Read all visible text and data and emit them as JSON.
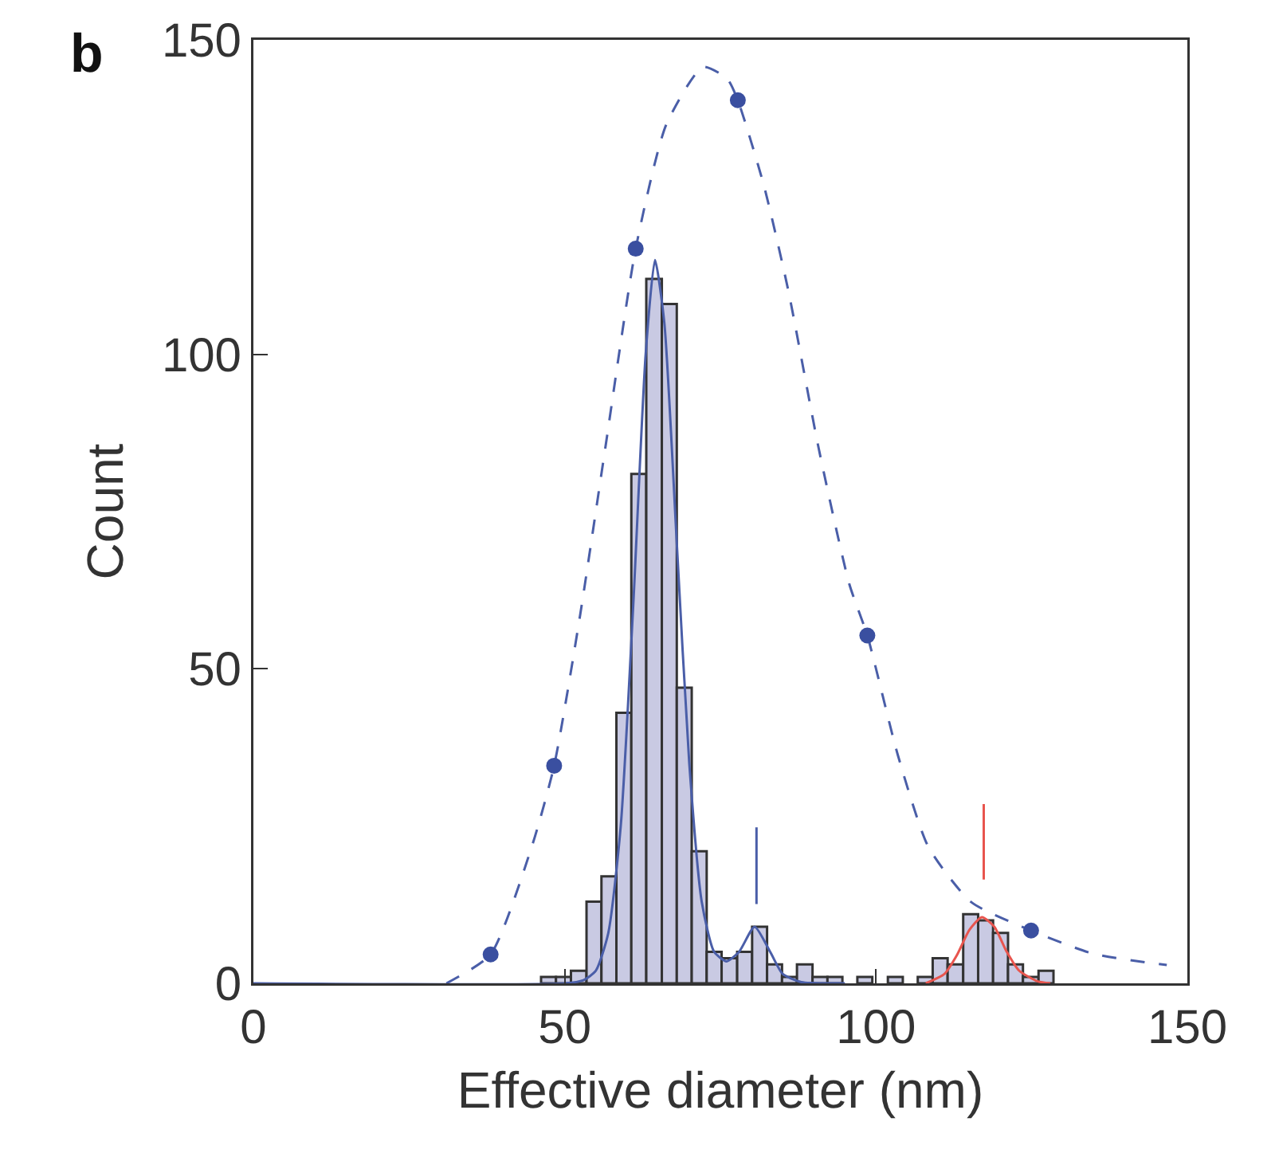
{
  "chart_data": {
    "type": "histogram",
    "annotations": [
      "b"
    ],
    "xlabel": "Effective diameter (nm)",
    "ylabel": "Count",
    "bins": [
      46.2,
      48.6,
      51.0,
      53.5,
      55.9,
      58.3,
      60.7,
      63.1,
      65.6,
      68.0,
      70.4,
      72.8,
      75.2,
      77.7,
      80.1,
      82.5,
      84.9,
      87.3,
      89.8,
      92.2,
      94.6,
      97.0,
      99.4,
      101.9,
      104.3,
      106.7,
      109.1,
      111.5,
      114.0,
      116.4,
      118.8,
      121.2,
      123.6,
      126.1,
      128.5
    ],
    "values": [
      1,
      1,
      2,
      13,
      17,
      43,
      81,
      112,
      108,
      47,
      21,
      5,
      4,
      5,
      9,
      3,
      1,
      3,
      1,
      1,
      0,
      1,
      0,
      1,
      0,
      1,
      4,
      3,
      11,
      10,
      8,
      3,
      1,
      2
    ],
    "color": "#c9cae3",
    "series": [
      {
        "type": "line",
        "color": "#4a5ea8",
        "line_style": "solid",
        "marker": "none",
        "x": [
          0,
          50,
          53,
          55,
          57,
          59,
          61,
          63,
          64.5,
          66,
          68,
          70,
          72,
          74,
          76,
          78,
          80.5,
          83,
          85,
          88,
          95
        ],
        "values": [
          0,
          0,
          0.5,
          2,
          8,
          25,
          60,
          100,
          115,
          105,
          70,
          35,
          13,
          5,
          3.5,
          5,
          9,
          5,
          1.5,
          0.2,
          0
        ]
      },
      {
        "type": "line",
        "color": "#e8554e",
        "line_style": "solid",
        "marker": "none",
        "x": [
          108,
          111,
          113,
          115,
          117,
          119,
          121,
          123,
          126,
          128
        ],
        "values": [
          0,
          1.5,
          4.5,
          8.5,
          10.5,
          9,
          5,
          2,
          0.3,
          0
        ]
      },
      {
        "type": "line",
        "color": "#4a5ea8",
        "line_style": "dashed",
        "marker": "none",
        "x": [
          31,
          38.1,
          44.7,
          48.3,
          52.5,
          56.5,
          61.4,
          66.3,
          72.2,
          76.1,
          77.8,
          82,
          85.9,
          90.8,
          95.7,
          98.6,
          103.5,
          108.4,
          115.3,
          124.9,
          134.9,
          146.7
        ],
        "values": [
          0,
          4.6,
          21.7,
          34.6,
          58.7,
          85,
          116.8,
          136.5,
          145.7,
          143.8,
          140.4,
          126.8,
          110.2,
          85,
          63.5,
          55.3,
          36.3,
          21.7,
          12.9,
          8.4,
          4.7,
          2.9
        ]
      },
      {
        "type": "scatter",
        "color": "#3a4fa0",
        "marker": "circle",
        "x": [
          38.1,
          48.3,
          61.4,
          77.8,
          98.6,
          124.9
        ],
        "values": [
          4.6,
          34.6,
          116.8,
          140.4,
          55.3,
          8.4
        ]
      },
      {
        "type": "line",
        "color": "#4a5ea8",
        "line_style": "solid",
        "marker": "none",
        "x": [
          80.8,
          80.8
        ],
        "values": [
          12.6,
          24.8
        ]
      },
      {
        "type": "line",
        "color": "#e8554e",
        "line_style": "solid",
        "marker": "none",
        "x": [
          117.3,
          117.3
        ],
        "values": [
          16.5,
          28.5
        ]
      }
    ],
    "xlim": [
      0,
      150
    ],
    "xticks": [
      0,
      50,
      100,
      150
    ],
    "ylim": [
      0,
      150
    ],
    "yticks": [
      0,
      50,
      100,
      150
    ]
  }
}
